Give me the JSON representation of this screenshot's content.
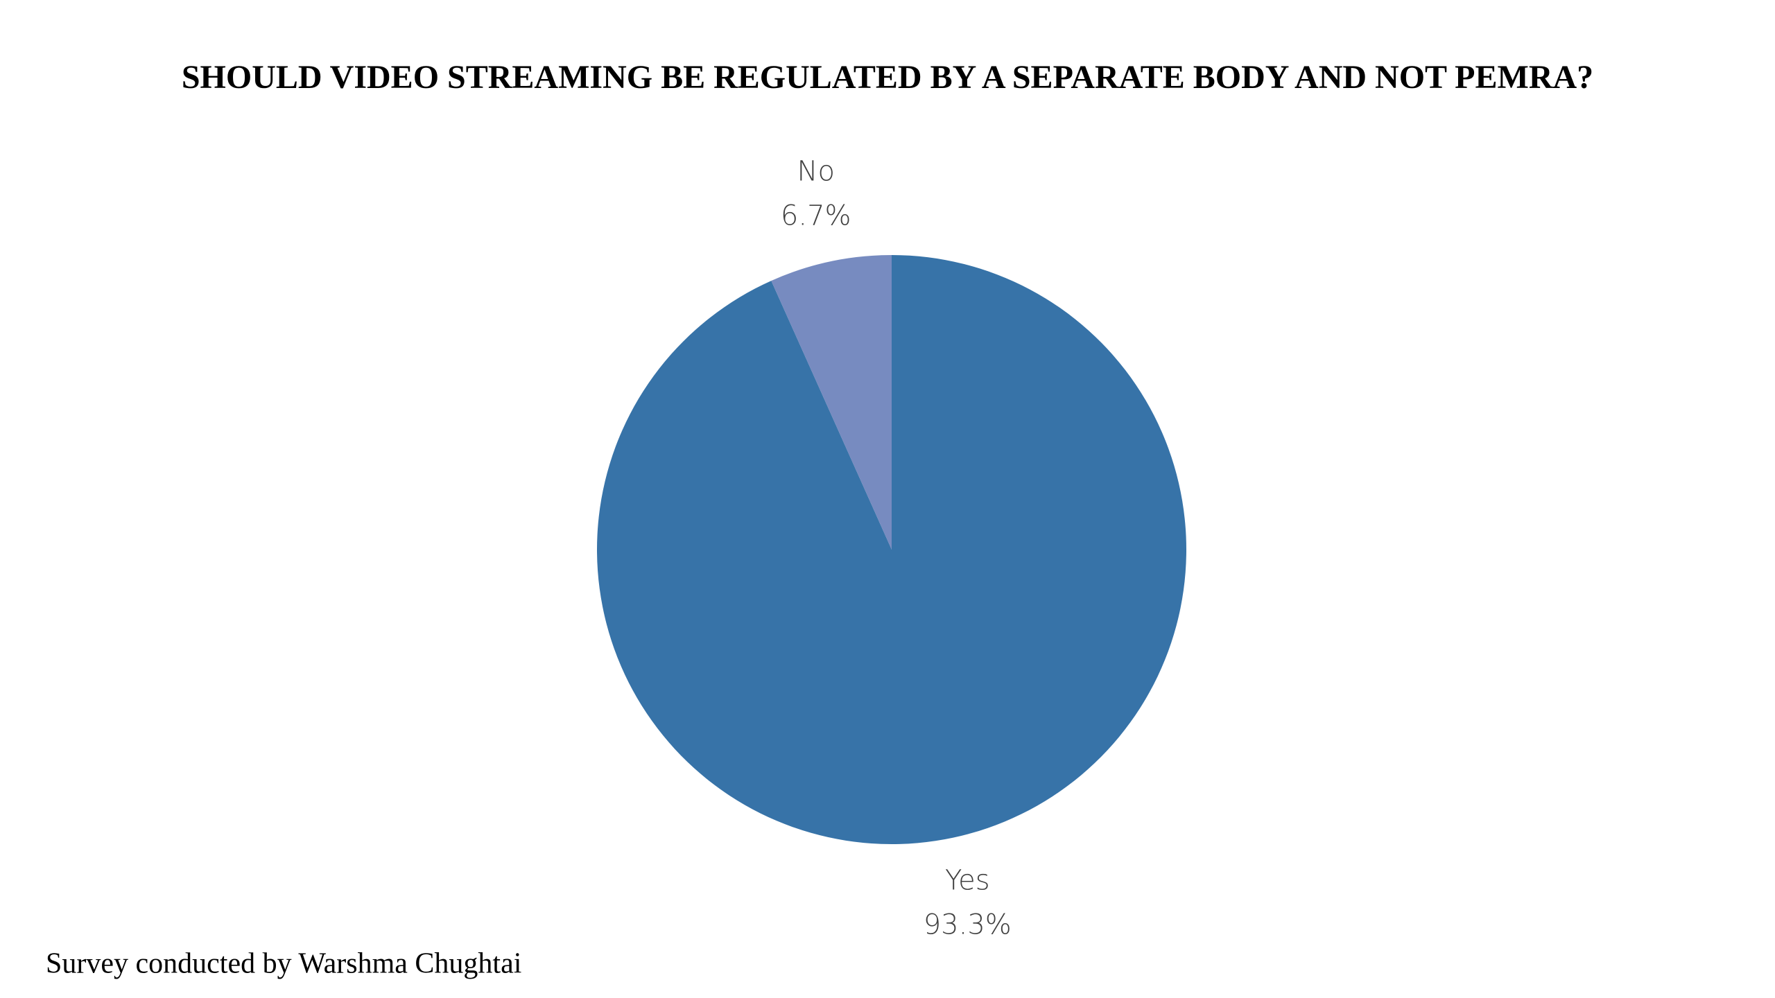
{
  "chart_data": {
    "type": "pie",
    "title": "SHOULD VIDEO STREAMING BE REGULATED BY A SEPARATE BODY AND NOT PEMRA?",
    "categories": [
      "Yes",
      "No"
    ],
    "values": [
      93.3,
      6.7
    ],
    "value_labels": [
      "93.3%",
      "6.7%"
    ],
    "colors": [
      "#3773a8",
      "#778bc0"
    ],
    "footnote": "Survey conducted by Warshma Chughtai"
  }
}
